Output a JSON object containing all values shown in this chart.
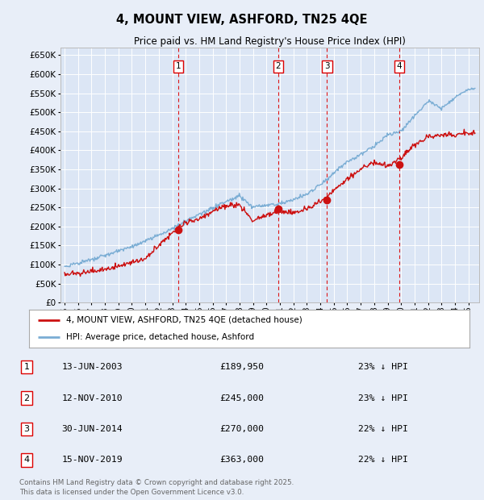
{
  "title": "4, MOUNT VIEW, ASHFORD, TN25 4QE",
  "subtitle": "Price paid vs. HM Land Registry's House Price Index (HPI)",
  "background_color": "#e8eef8",
  "plot_bg_color": "#dce6f5",
  "ylim": [
    0,
    670000
  ],
  "yticks": [
    0,
    50000,
    100000,
    150000,
    200000,
    250000,
    300000,
    350000,
    400000,
    450000,
    500000,
    550000,
    600000,
    650000
  ],
  "xticks": [
    1995,
    1996,
    1997,
    1998,
    1999,
    2000,
    2001,
    2002,
    2003,
    2004,
    2005,
    2006,
    2007,
    2008,
    2009,
    2010,
    2011,
    2012,
    2013,
    2014,
    2015,
    2016,
    2017,
    2018,
    2019,
    2020,
    2021,
    2022,
    2023,
    2024,
    2025
  ],
  "hpi_color": "#7aadd4",
  "price_color": "#cc1111",
  "grid_color": "#ffffff",
  "vline_color": "#dd0000",
  "transactions": [
    {
      "num": 1,
      "year": 2003.45,
      "price": 189950
    },
    {
      "num": 2,
      "year": 2010.87,
      "price": 245000
    },
    {
      "num": 3,
      "year": 2014.5,
      "price": 270000
    },
    {
      "num": 4,
      "year": 2019.88,
      "price": 363000
    }
  ],
  "legend_label_price": "4, MOUNT VIEW, ASHFORD, TN25 4QE (detached house)",
  "legend_label_hpi": "HPI: Average price, detached house, Ashford",
  "footer": "Contains HM Land Registry data © Crown copyright and database right 2025.\nThis data is licensed under the Open Government Licence v3.0.",
  "table_rows": [
    [
      "1",
      "13-JUN-2003",
      "£189,950",
      "23% ↓ HPI"
    ],
    [
      "2",
      "12-NOV-2010",
      "£245,000",
      "23% ↓ HPI"
    ],
    [
      "3",
      "30-JUN-2014",
      "£270,000",
      "22% ↓ HPI"
    ],
    [
      "4",
      "15-NOV-2019",
      "£363,000",
      "22% ↓ HPI"
    ]
  ]
}
